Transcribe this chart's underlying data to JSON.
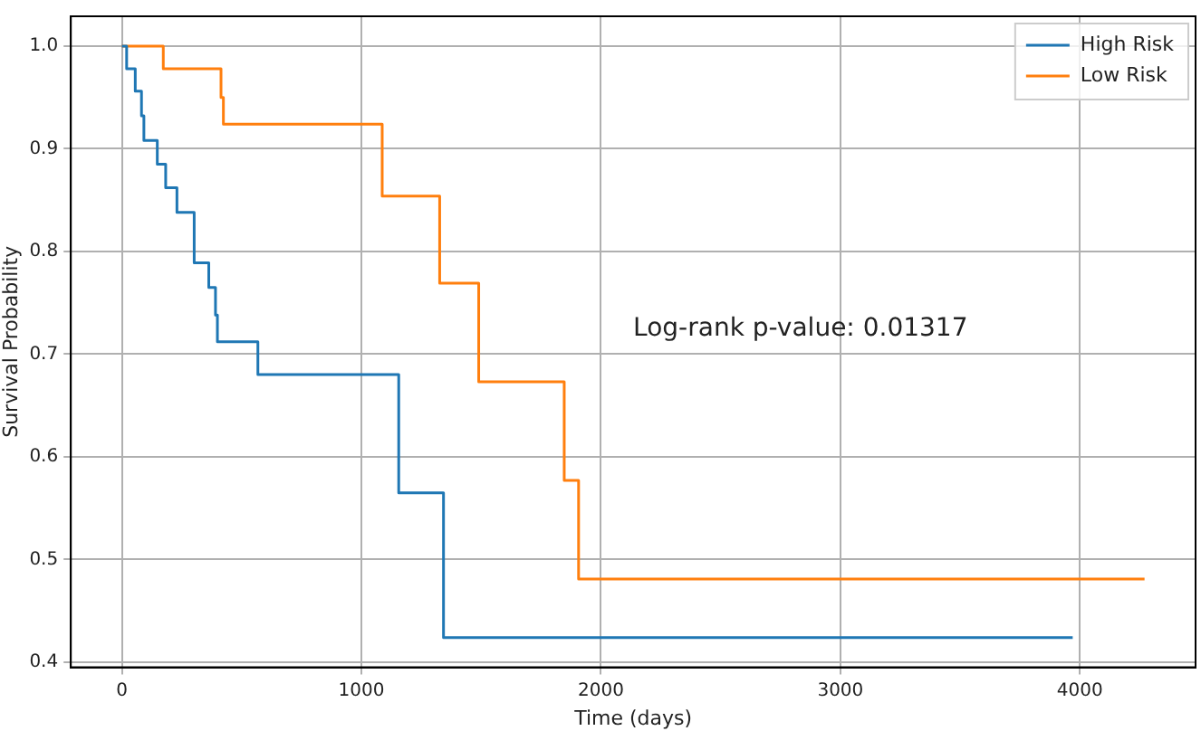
{
  "chart_data": {
    "type": "step",
    "xlabel": "Time (days)",
    "ylabel": "Survival Probability",
    "series": [
      {
        "name": "High Risk",
        "color": "#1f77b4",
        "x": [
          0,
          20,
          56,
          82,
          92,
          148,
          183,
          230,
          302,
          363,
          391,
          399,
          568,
          1156,
          1343,
          3970
        ],
        "values": [
          1.0,
          0.978,
          0.956,
          0.932,
          0.908,
          0.885,
          0.862,
          0.838,
          0.789,
          0.765,
          0.738,
          0.712,
          0.68,
          0.565,
          0.424,
          0.424
        ]
      },
      {
        "name": "Low Risk",
        "color": "#ff7f0e",
        "x": [
          0,
          173,
          414,
          424,
          1087,
          1327,
          1490,
          1847,
          1907,
          4270
        ],
        "values": [
          1.0,
          0.978,
          0.95,
          0.924,
          0.854,
          0.769,
          0.673,
          0.577,
          0.481,
          0.481
        ]
      }
    ],
    "xlim": [
      -213,
      4483
    ],
    "ylim": [
      0.395,
      1.029
    ],
    "xticks": [
      0,
      1000,
      2000,
      3000,
      4000
    ],
    "yticks": [
      {
        "value": 0.4,
        "label": "0.4"
      },
      {
        "value": 0.5,
        "label": "0.5"
      },
      {
        "value": 0.6,
        "label": "0.6"
      },
      {
        "value": 0.7,
        "label": "0.7"
      },
      {
        "value": 0.8,
        "label": "0.8"
      },
      {
        "value": 0.9,
        "label": "0.9"
      },
      {
        "value": 1.0,
        "label": "1.0"
      }
    ],
    "grid": true,
    "legend": "top right",
    "annotations": [
      "Log-rank p-value: 0.01317"
    ]
  }
}
